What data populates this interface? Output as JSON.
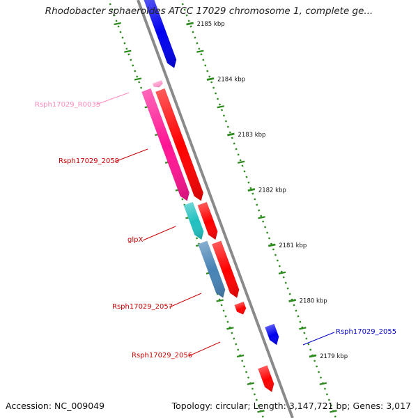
{
  "title": "Rhodobacter sphaeroides ATCC 17029 chromosome 1, complete ge...",
  "footer": {
    "accession": "Accession: NC_009049",
    "summary": "Topology: circular; Length: 3,147,721 bp; Genes: 3,017"
  },
  "colors": {
    "backbone": "#8a8a8a",
    "tick": "#2e8b1f",
    "forward_gene": "#ff0000",
    "reverse_gene": "#0000ee",
    "rna_gene": "#ff99cc",
    "label_red": "#cc0000",
    "label_blue": "#0000cc",
    "label_pink": "#ff88bb"
  },
  "scale": {
    "unit": "kbp",
    "ticks": [
      {
        "kbp": 2185,
        "label": "2185 kbp"
      },
      {
        "kbp": 2184,
        "label": "2184 kbp"
      },
      {
        "kbp": 2183,
        "label": "2183 kbp"
      },
      {
        "kbp": 2182,
        "label": "2182 kbp"
      },
      {
        "kbp": 2181,
        "label": "2181 kbp"
      },
      {
        "kbp": 2180,
        "label": "2180 kbp"
      },
      {
        "kbp": 2179,
        "label": "2179 kbp"
      }
    ]
  },
  "genes": [
    {
      "name": "Rsph17029_2055",
      "strand": "reverse",
      "color": "#0000ee",
      "start_kbp": 2179.2,
      "end_kbp": 2179.55,
      "labeled": true
    },
    {
      "name": "Rsph17029_2056",
      "strand": "forward",
      "color": "#ff0000",
      "start_kbp": 2179.75,
      "end_kbp": 2179.95,
      "labeled": true
    },
    {
      "name": "Rsph17029_2057",
      "strand": "forward",
      "color": "#ff0000",
      "start_kbp": 2180.05,
      "end_kbp": 2181.05,
      "labeled": true
    },
    {
      "name": "glpX",
      "strand": "forward",
      "color": "#ff0000",
      "start_kbp": 2181.1,
      "end_kbp": 2181.75,
      "labeled": true
    },
    {
      "name": "Rsph17029_2059",
      "strand": "forward",
      "color": "#ff0000",
      "start_kbp": 2181.8,
      "end_kbp": 2183.8,
      "labeled": true
    },
    {
      "name": "Rsph17029_R0035",
      "strand": "forward",
      "color": "#ff99cc",
      "start_kbp": 2183.85,
      "end_kbp": 2183.95,
      "labeled": true
    },
    {
      "name": "",
      "strand": "reverse",
      "color": "#0000ee",
      "start_kbp": 2184.2,
      "end_kbp": 2185.5,
      "labeled": false
    },
    {
      "name": "",
      "strand": "forward",
      "color": "#ff0000",
      "start_kbp": 2178.35,
      "end_kbp": 2178.8,
      "labeled": false
    }
  ],
  "features": [
    {
      "gene": "Rsph17029_2057",
      "color": "#4682b4",
      "start_kbp": 2180.05,
      "end_kbp": 2181.05
    },
    {
      "gene": "glpX",
      "color": "#20c0c0",
      "start_kbp": 2181.1,
      "end_kbp": 2181.75
    },
    {
      "gene": "Rsph17029_2059",
      "color": "#ff1493",
      "start_kbp": 2181.8,
      "end_kbp": 2183.8
    }
  ],
  "labels": {
    "Rsph17029_2055": {
      "side": "right",
      "color": "#0000cc"
    },
    "Rsph17029_2056": {
      "side": "left",
      "color": "#cc0000"
    },
    "Rsph17029_2057": {
      "side": "left",
      "color": "#cc0000"
    },
    "glpX": {
      "side": "left",
      "color": "#cc0000"
    },
    "Rsph17029_2059": {
      "side": "left",
      "color": "#cc0000"
    },
    "Rsph17029_R0035": {
      "side": "left",
      "color": "#ff88bb"
    }
  }
}
